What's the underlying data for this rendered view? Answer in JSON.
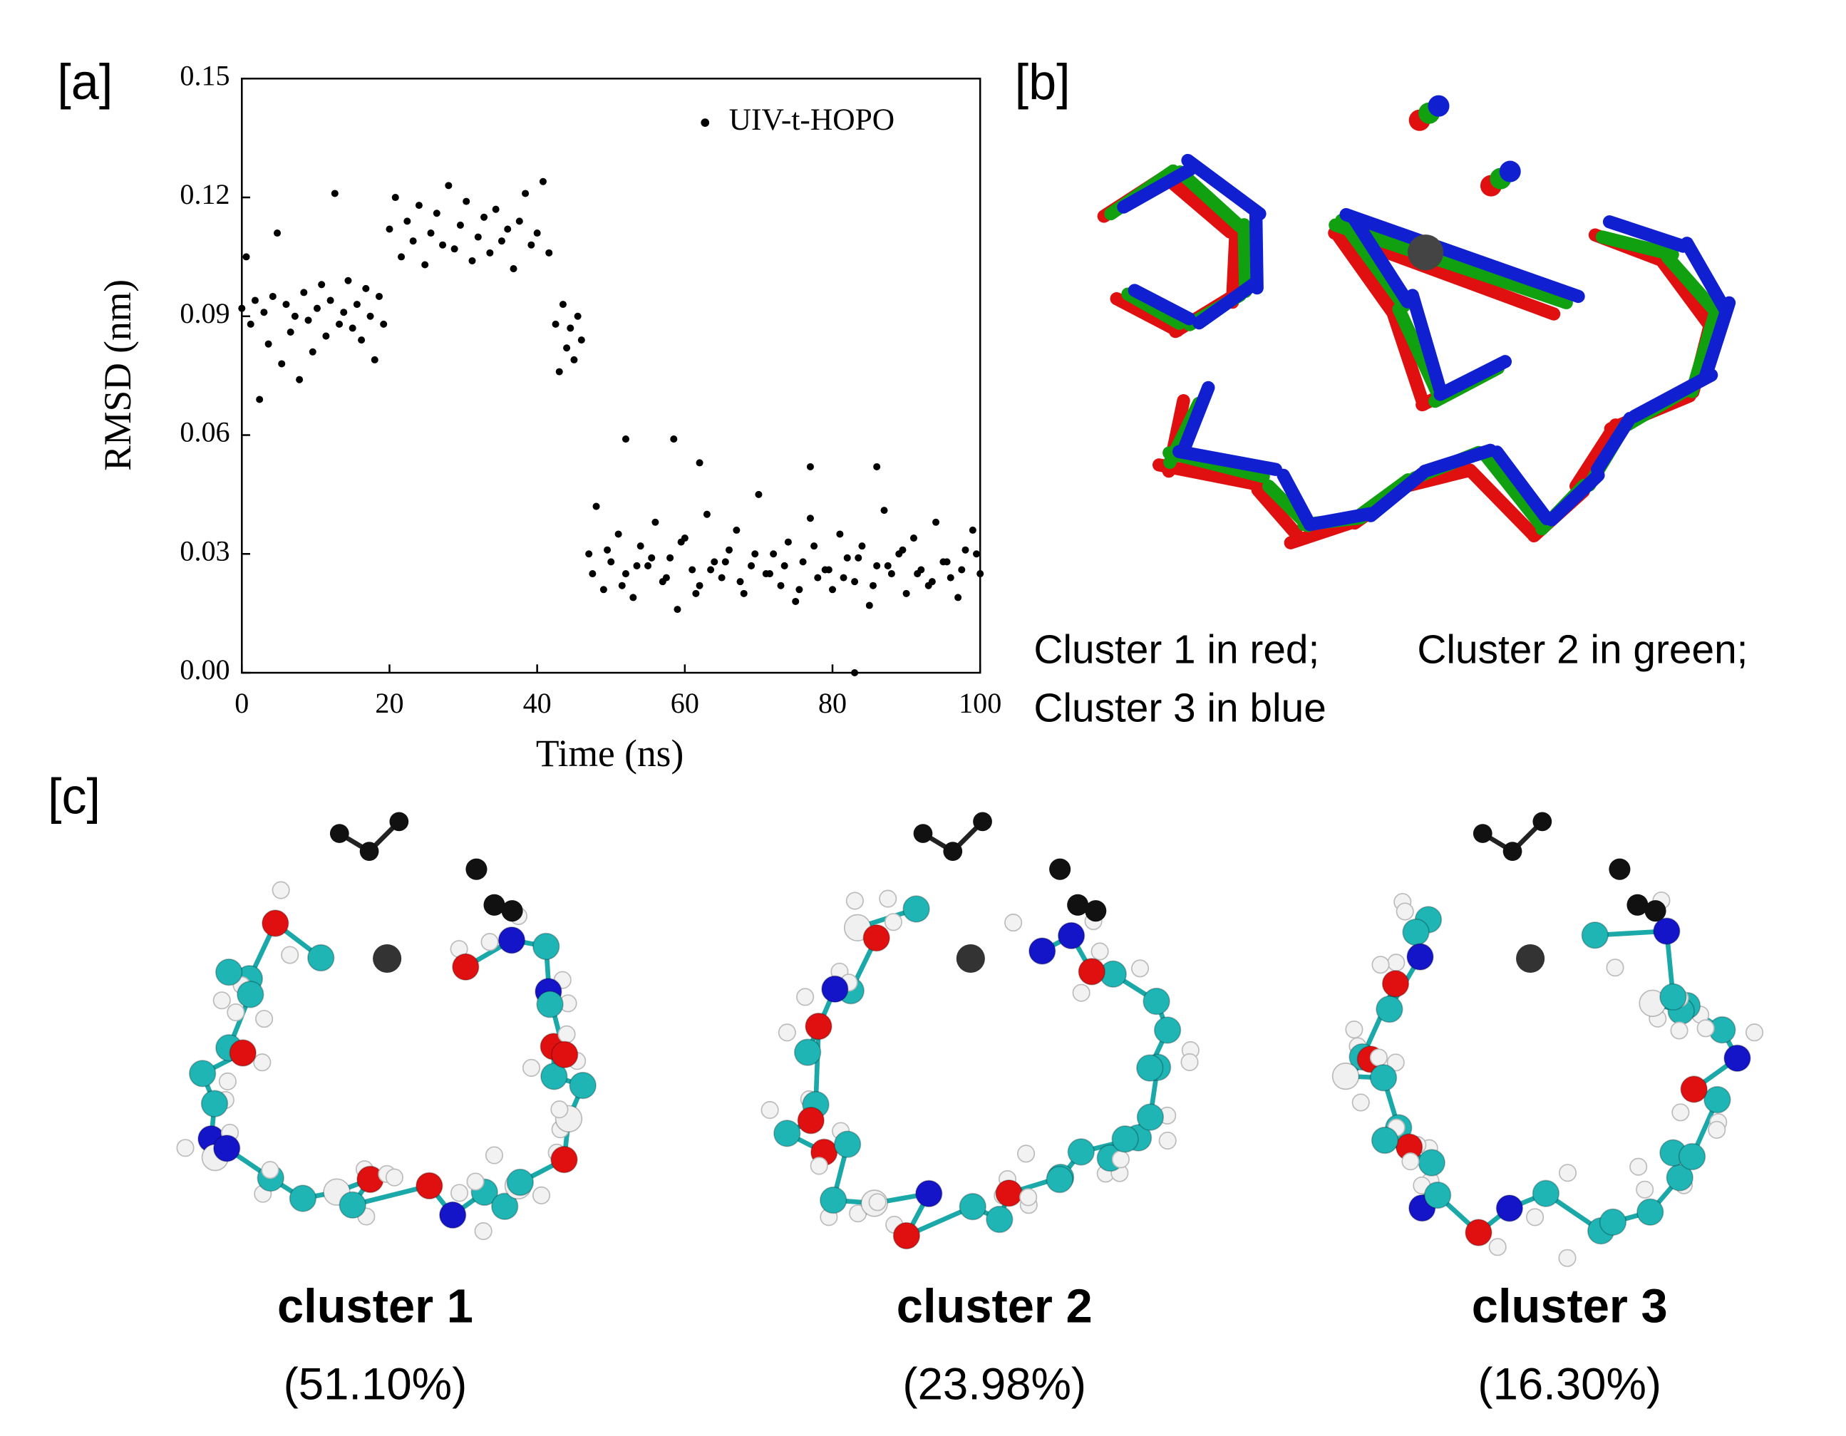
{
  "chart_data": {
    "type": "scatter",
    "panel_label": "[a]",
    "xlabel": "Time (ns)",
    "ylabel": "RMSD (nm)",
    "xlim": [
      0,
      100
    ],
    "ylim": [
      0,
      0.15
    ],
    "xticks": [
      0,
      20,
      40,
      60,
      80,
      100
    ],
    "yticks": [
      {
        "value": 0,
        "label": "0.00"
      },
      0.03,
      0.06,
      0.09,
      0.12,
      0.15
    ],
    "grid": false,
    "legend": "upper right",
    "series": [
      {
        "name": "UIV-t-HOPO",
        "color": "#000000",
        "x": [
          0,
          0.6,
          1.2,
          1.8,
          2.4,
          3,
          3.6,
          4.2,
          4.8,
          5.4,
          6,
          6.6,
          7.2,
          7.8,
          8.4,
          9,
          9.6,
          10.2,
          10.8,
          11.4,
          12,
          12.6,
          13.2,
          13.8,
          14.4,
          15,
          15.6,
          16.2,
          16.8,
          17.4,
          18,
          18.6,
          19.2,
          20,
          20.8,
          21.6,
          22.4,
          23.2,
          24,
          24.8,
          25.6,
          26.4,
          27.2,
          28,
          28.8,
          29.6,
          30.4,
          31.2,
          32,
          32.8,
          33.6,
          34.4,
          35.2,
          36,
          36.8,
          37.6,
          38.4,
          39.2,
          40,
          40.8,
          41.6,
          42.5,
          43,
          43.5,
          44,
          44.5,
          45,
          45.5,
          46,
          47,
          48,
          49,
          50,
          51,
          52,
          53,
          54,
          55,
          56,
          57,
          58,
          59,
          60,
          61,
          62,
          63,
          64,
          65,
          66,
          67,
          68,
          69,
          70,
          71,
          72,
          73,
          74,
          75,
          76,
          77,
          78,
          79,
          80,
          81,
          82,
          83,
          84,
          85,
          86,
          87,
          88,
          89,
          90,
          91,
          92,
          93,
          94,
          95,
          96,
          97,
          98,
          99,
          100,
          47.5,
          49.5,
          51.5,
          53.5,
          55.5,
          57.5,
          59.5,
          61.5,
          63.5,
          65.5,
          67.5,
          69.5,
          71.5,
          73.5,
          75.5,
          77.5,
          79.5,
          81.5,
          83.5,
          85.5,
          87.5,
          89.5,
          91.5,
          93.5,
          95.5,
          97.5,
          99.5,
          52,
          58.5,
          62,
          77,
          86,
          83
        ],
        "values": [
          0.092,
          0.105,
          0.088,
          0.094,
          0.069,
          0.091,
          0.083,
          0.095,
          0.111,
          0.078,
          0.093,
          0.086,
          0.09,
          0.074,
          0.096,
          0.089,
          0.081,
          0.092,
          0.098,
          0.085,
          0.094,
          0.121,
          0.088,
          0.091,
          0.099,
          0.087,
          0.093,
          0.084,
          0.097,
          0.09,
          0.079,
          0.095,
          0.088,
          0.112,
          0.12,
          0.105,
          0.114,
          0.109,
          0.118,
          0.103,
          0.111,
          0.116,
          0.108,
          0.123,
          0.107,
          0.113,
          0.119,
          0.104,
          0.11,
          0.115,
          0.106,
          0.117,
          0.109,
          0.112,
          0.102,
          0.114,
          0.121,
          0.108,
          0.111,
          0.124,
          0.106,
          0.088,
          0.076,
          0.093,
          0.082,
          0.087,
          0.079,
          0.09,
          0.084,
          0.03,
          0.042,
          0.021,
          0.028,
          0.035,
          0.025,
          0.019,
          0.032,
          0.027,
          0.038,
          0.023,
          0.029,
          0.016,
          0.034,
          0.026,
          0.022,
          0.04,
          0.028,
          0.024,
          0.031,
          0.036,
          0.02,
          0.027,
          0.045,
          0.025,
          0.03,
          0.022,
          0.033,
          0.018,
          0.028,
          0.039,
          0.024,
          0.026,
          0.021,
          0.035,
          0.029,
          0.023,
          0.032,
          0.017,
          0.027,
          0.041,
          0.025,
          0.03,
          0.02,
          0.034,
          0.026,
          0.022,
          0.038,
          0.028,
          0.024,
          0.019,
          0.031,
          0.036,
          0.025,
          0.025,
          0.031,
          0.022,
          0.027,
          0.029,
          0.024,
          0.033,
          0.02,
          0.026,
          0.028,
          0.023,
          0.03,
          0.025,
          0.027,
          0.021,
          0.032,
          0.026,
          0.024,
          0.029,
          0.022,
          0.027,
          0.031,
          0.025,
          0.023,
          0.028,
          0.026,
          0.03,
          0.059,
          0.059,
          0.053,
          0.052,
          0.052,
          0
        ]
      }
    ]
  },
  "panel_b": {
    "label": "[b]",
    "caption": [
      "Cluster 1 in red;",
      "Cluster 2 in green;",
      "Cluster 3 in blue"
    ]
  },
  "panel_c": {
    "label": "[c]",
    "clusters": [
      {
        "name": "cluster 1",
        "share": "(51.10%)"
      },
      {
        "name": "cluster 2",
        "share": "(23.98%)"
      },
      {
        "name": "cluster 3",
        "share": "(16.30%)"
      }
    ]
  }
}
